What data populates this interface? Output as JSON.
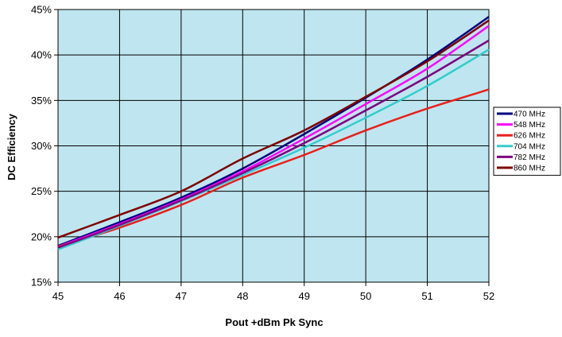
{
  "chart_data": {
    "type": "line",
    "title": "",
    "xlabel": "Pout +dBm Pk Sync",
    "ylabel": "DC Efficiency",
    "xlim": [
      45,
      52
    ],
    "ylim": [
      15,
      45
    ],
    "x_ticks": [
      45,
      46,
      47,
      48,
      49,
      50,
      51,
      52
    ],
    "x_tick_labels": [
      "45",
      "46",
      "47",
      "48",
      "49",
      "50",
      "51",
      "52"
    ],
    "y_ticks": [
      15,
      20,
      25,
      30,
      35,
      40,
      45
    ],
    "y_tick_labels": [
      "15%",
      "20%",
      "25%",
      "30%",
      "35%",
      "40%",
      "45%"
    ],
    "grid": true,
    "plot_background": "#BFE6F0",
    "legend_position": "right",
    "x": [
      45,
      46,
      47,
      48,
      49,
      50,
      51,
      52
    ],
    "series": [
      {
        "name": "470 MHz",
        "color": "#000080",
        "values": [
          19.0,
          21.6,
          24.3,
          27.5,
          31.3,
          35.3,
          39.5,
          44.2
        ]
      },
      {
        "name": "548 MHz",
        "color": "#FF00FF",
        "values": [
          18.9,
          21.4,
          24.1,
          27.2,
          30.8,
          34.6,
          38.5,
          43.2
        ]
      },
      {
        "name": "626 MHz",
        "color": "#E8201C",
        "values": [
          18.9,
          21.0,
          23.5,
          26.5,
          29.0,
          31.7,
          34.1,
          36.2
        ]
      },
      {
        "name": "704 MHz",
        "color": "#33CCCC",
        "values": [
          18.6,
          21.2,
          23.9,
          26.8,
          29.8,
          33.1,
          36.6,
          40.6
        ]
      },
      {
        "name": "782 MHz",
        "color": "#800080",
        "values": [
          18.8,
          21.3,
          24.0,
          27.0,
          30.3,
          33.9,
          37.6,
          41.6
        ]
      },
      {
        "name": "860 MHz",
        "color": "#800000",
        "values": [
          19.9,
          22.4,
          25.0,
          28.6,
          31.7,
          35.4,
          39.3,
          43.8
        ]
      }
    ]
  }
}
